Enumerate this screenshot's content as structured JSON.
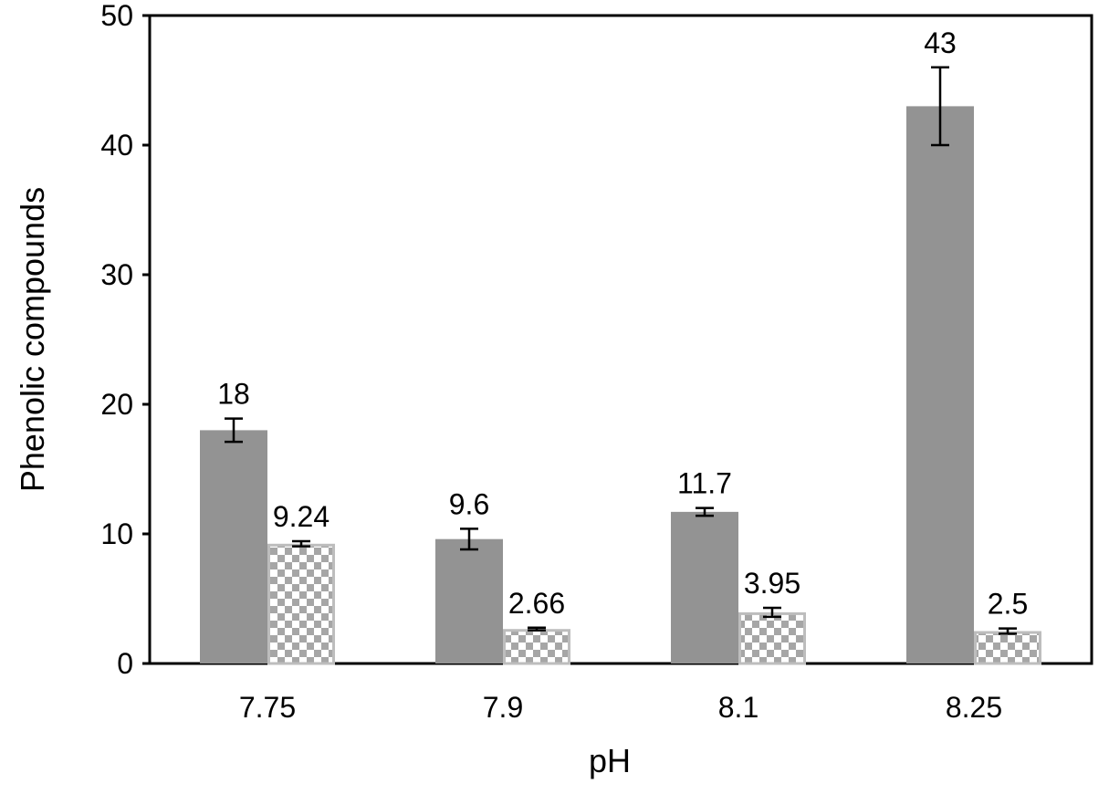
{
  "chart_data": {
    "type": "bar",
    "title": "",
    "xlabel": "pH",
    "ylabel": "Phenolic compounds",
    "categories": [
      "7.75",
      "7.9",
      "8.1",
      "8.25"
    ],
    "ylim": [
      0,
      50
    ],
    "yticks": [
      0,
      10,
      20,
      30,
      40,
      50
    ],
    "grid": false,
    "legend": "none",
    "series": [
      {
        "values": [
          18,
          9.6,
          11.7,
          43
        ],
        "data_labels": [
          "18",
          "9.6",
          "11.7",
          "43"
        ],
        "error": [
          0.9,
          0.8,
          0.3,
          3.0
        ],
        "style": "solid",
        "color": "#939393"
      },
      {
        "values": [
          9.24,
          2.66,
          3.95,
          2.5
        ],
        "data_labels": [
          "9.24",
          "2.66",
          "3.95",
          "2.5"
        ],
        "error": [
          0.2,
          0.1,
          0.35,
          0.2
        ],
        "style": "checkered",
        "color": "#a6a6a6",
        "edge_color": "#bdbdbd"
      }
    ]
  }
}
